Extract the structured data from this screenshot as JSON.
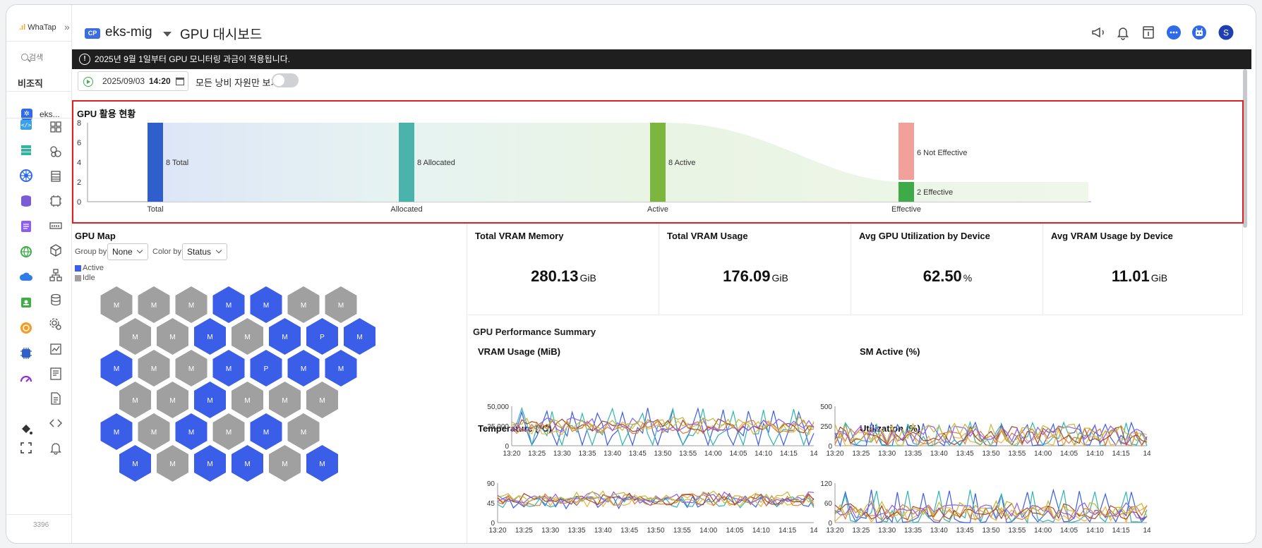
{
  "app": {
    "logo_text": "WhaTap",
    "sidebar_search": "검색",
    "org_label": "비조직",
    "project_short": "eks...",
    "sidebar_footer": "3396"
  },
  "header": {
    "cp_badge": "CP",
    "project_name": "eks-mig",
    "page_title": "GPU 대시보드"
  },
  "notice": {
    "text": "2025년 9월 1일부터 GPU 모니터링 과금이 적용됩니다."
  },
  "toolbar": {
    "date": "2025/09/03",
    "time": "14:20",
    "waste_only_label": "모든 낭비 자원만 보기",
    "waste_only_on": false
  },
  "gpu_status": {
    "title": "GPU 활용 현황",
    "chart_data": {
      "type": "sankey-bar",
      "categories": [
        "Total",
        "Allocated",
        "Active",
        "Effective"
      ],
      "ylim": [
        0,
        8
      ],
      "yticks": [
        "0",
        "2",
        "4",
        "6",
        "8"
      ],
      "bars": [
        {
          "category": "Total",
          "value": 8,
          "label": "8 Total",
          "color": "#2f5fcc"
        },
        {
          "category": "Allocated",
          "value": 8,
          "label": "8 Allocated",
          "color": "#4ab3ab"
        },
        {
          "category": "Active",
          "value": 8,
          "label": "8 Active",
          "color": "#7cb63f"
        },
        {
          "category": "Effective",
          "value": 6,
          "label": "6 Not Effective",
          "color": "#f1a09a",
          "stack": "top"
        },
        {
          "category": "Effective",
          "value": 2,
          "label": "2 Effective",
          "color": "#3faa48",
          "stack": "bottom"
        }
      ]
    }
  },
  "gpu_map": {
    "title": "GPU Map",
    "group_by_label": "Group by",
    "group_by_value": "None",
    "color_by_label": "Color by",
    "color_by_value": "Status",
    "legend": [
      {
        "label": "Active",
        "color": "#3b5ee8"
      },
      {
        "label": "Idle",
        "color": "#a0a0a0"
      }
    ],
    "rows": [
      [
        {
          "t": "M",
          "s": "idle"
        },
        {
          "t": "M",
          "s": "idle"
        },
        {
          "t": "M",
          "s": "idle"
        },
        {
          "t": "M",
          "s": "active"
        },
        {
          "t": "M",
          "s": "active"
        },
        {
          "t": "M",
          "s": "idle"
        },
        {
          "t": "M",
          "s": "idle"
        }
      ],
      [
        {
          "t": "M",
          "s": "idle"
        },
        {
          "t": "M",
          "s": "idle"
        },
        {
          "t": "M",
          "s": "active"
        },
        {
          "t": "M",
          "s": "idle"
        },
        {
          "t": "M",
          "s": "active"
        },
        {
          "t": "P",
          "s": "active"
        },
        {
          "t": "M",
          "s": "active"
        }
      ],
      [
        {
          "t": "M",
          "s": "active"
        },
        {
          "t": "M",
          "s": "idle"
        },
        {
          "t": "M",
          "s": "idle"
        },
        {
          "t": "M",
          "s": "active"
        },
        {
          "t": "P",
          "s": "active"
        },
        {
          "t": "M",
          "s": "active"
        },
        {
          "t": "M",
          "s": "active"
        }
      ],
      [
        {
          "t": "M",
          "s": "idle"
        },
        {
          "t": "M",
          "s": "idle"
        },
        {
          "t": "M",
          "s": "active"
        },
        {
          "t": "M",
          "s": "idle"
        },
        {
          "t": "M",
          "s": "idle"
        },
        {
          "t": "M",
          "s": "idle"
        }
      ],
      [
        {
          "t": "M",
          "s": "active"
        },
        {
          "t": "M",
          "s": "idle"
        },
        {
          "t": "M",
          "s": "active"
        },
        {
          "t": "M",
          "s": "idle"
        },
        {
          "t": "M",
          "s": "active"
        },
        {
          "t": "M",
          "s": "idle"
        }
      ],
      [
        {
          "t": "M",
          "s": "active"
        },
        {
          "t": "M",
          "s": "idle"
        },
        {
          "t": "M",
          "s": "active"
        },
        {
          "t": "M",
          "s": "active"
        },
        {
          "t": "M",
          "s": "idle"
        },
        {
          "t": "M",
          "s": "active"
        }
      ]
    ]
  },
  "metrics": [
    {
      "title": "Total VRAM Memory",
      "value": "280.13",
      "unit": "GiB"
    },
    {
      "title": "Total VRAM Usage",
      "value": "176.09",
      "unit": "GiB"
    },
    {
      "title": "Avg GPU Utilization by Device",
      "value": "62.50",
      "unit": "%"
    },
    {
      "title": "Avg VRAM Usage by Device",
      "value": "11.01",
      "unit": "GiB"
    }
  ],
  "performance": {
    "title": "GPU Performance Summary",
    "series_colors": [
      "#3b5ee8",
      "#2fb5b0",
      "#f2b33d",
      "#e07a3a",
      "#a2462f",
      "#8b5cf6",
      "#c9b534"
    ],
    "x_ticks": [
      "13:20",
      "13:25",
      "13:30",
      "13:35",
      "13:40",
      "13:45",
      "13:50",
      "13:55",
      "14:00",
      "14:05",
      "14:10",
      "14:15",
      "14"
    ],
    "charts": [
      {
        "title": "VRAM Usage (MiB)",
        "yticks": [
          "50,000",
          "25,000",
          "0"
        ],
        "ymax": 50000,
        "base": 24000,
        "amp": 9000,
        "spike": 48000
      },
      {
        "title": "SM Active (%)",
        "yticks": [
          "500",
          "250",
          "0"
        ],
        "ymax": 500,
        "base": 110,
        "amp": 120,
        "spike": 300
      },
      {
        "title": "Temperature (°C)",
        "yticks": [
          "90",
          "45",
          "0"
        ],
        "ymax": 90,
        "base": 52,
        "amp": 14,
        "spike": 62
      },
      {
        "title": "Utilization (%)",
        "yticks": [
          "120",
          "60",
          "0"
        ],
        "ymax": 120,
        "base": 30,
        "amp": 25,
        "spike": 100
      }
    ]
  }
}
